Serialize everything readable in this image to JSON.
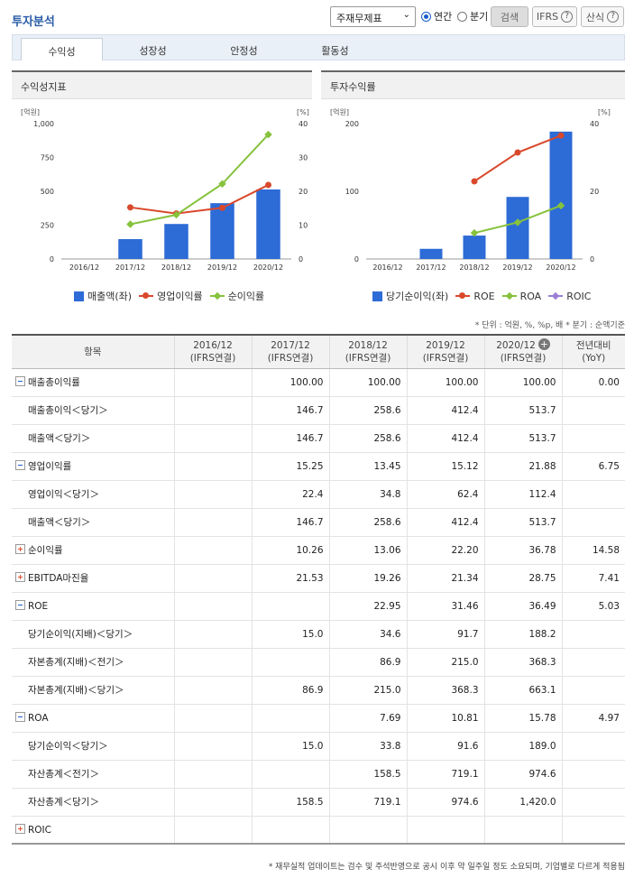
{
  "header": {
    "title": "투자분석",
    "select_value": "주재무제표",
    "radio_annual": "연간",
    "radio_quarter": "분기",
    "search_button": "검색",
    "ifrs_button": "IFRS",
    "formula_button": "산식"
  },
  "tabs": [
    "수익성",
    "성장성",
    "안정성",
    "활동성"
  ],
  "left_panel": {
    "title": "수익성지표",
    "unit_left": "[억원]",
    "unit_right": "[%]",
    "legend": [
      "매출액(좌)",
      "영업이익률",
      "순이익률"
    ]
  },
  "right_panel": {
    "title": "투자수익률",
    "unit_left": "[억원]",
    "unit_right": "[%]",
    "legend": [
      "당기순이익(좌)",
      "ROE",
      "ROA",
      "ROIC"
    ]
  },
  "chart_data": [
    {
      "type": "bar",
      "title": "수익성지표",
      "categories": [
        "2016/12",
        "2017/12",
        "2018/12",
        "2019/12",
        "2020/12"
      ],
      "y_left_ticks": [
        "0",
        "250",
        "500",
        "750",
        "1,000"
      ],
      "y_right_ticks": [
        "0",
        "10",
        "20",
        "30",
        "40"
      ],
      "ylim_left": [
        0,
        1000
      ],
      "ylim_right": [
        0,
        40
      ],
      "series": [
        {
          "name": "매출액(좌)",
          "axis": "left",
          "kind": "bar",
          "color": "#2d6bd6",
          "values": [
            null,
            146.7,
            258.6,
            412.4,
            513.7
          ]
        },
        {
          "name": "영업이익률",
          "axis": "right",
          "kind": "line",
          "color": "#d9482b",
          "values": [
            null,
            15.25,
            13.45,
            15.12,
            21.88
          ]
        },
        {
          "name": "순이익률",
          "axis": "right",
          "kind": "line",
          "color": "#86c23c",
          "values": [
            null,
            10.26,
            13.06,
            22.2,
            36.78
          ]
        }
      ]
    },
    {
      "type": "bar",
      "title": "투자수익률",
      "categories": [
        "2016/12",
        "2017/12",
        "2018/12",
        "2019/12",
        "2020/12"
      ],
      "y_left_ticks": [
        "0",
        "100",
        "200"
      ],
      "y_right_ticks": [
        "0",
        "20",
        "40"
      ],
      "ylim_left": [
        0,
        200
      ],
      "ylim_right": [
        0,
        40
      ],
      "series": [
        {
          "name": "당기순이익(좌)",
          "axis": "left",
          "kind": "bar",
          "color": "#2d6bd6",
          "values": [
            null,
            15.0,
            34.6,
            91.7,
            188.2
          ]
        },
        {
          "name": "ROE",
          "axis": "right",
          "kind": "line",
          "color": "#d9482b",
          "values": [
            null,
            null,
            22.95,
            31.46,
            36.49
          ]
        },
        {
          "name": "ROA",
          "axis": "right",
          "kind": "line",
          "color": "#86c23c",
          "values": [
            null,
            null,
            7.69,
            10.81,
            15.78
          ]
        },
        {
          "name": "ROIC",
          "axis": "right",
          "kind": "line",
          "color": "#9b7fd6",
          "values": [
            null,
            null,
            null,
            null,
            null
          ]
        }
      ]
    }
  ],
  "note": "* 단위 : 억원, %, %p, 배   * 분기 : 순액기준",
  "table": {
    "headers": [
      {
        "line1": "항목",
        "line2": ""
      },
      {
        "line1": "2016/12",
        "line2": "(IFRS연결)"
      },
      {
        "line1": "2017/12",
        "line2": "(IFRS연결)"
      },
      {
        "line1": "2018/12",
        "line2": "(IFRS연결)"
      },
      {
        "line1": "2019/12",
        "line2": "(IFRS연결)"
      },
      {
        "line1": "2020/12",
        "line2": "(IFRS연결)"
      },
      {
        "line1": "전년대비",
        "line2": "(YoY)"
      }
    ],
    "rows": [
      {
        "label": "매출총이익률",
        "level": 0,
        "toggle": "minus",
        "values": [
          "",
          "100.00",
          "100.00",
          "100.00",
          "100.00",
          "0.00"
        ]
      },
      {
        "label": "매출총이익＜당기＞",
        "level": 1,
        "values": [
          "",
          "146.7",
          "258.6",
          "412.4",
          "513.7",
          ""
        ]
      },
      {
        "label": "매출액＜당기＞",
        "level": 1,
        "values": [
          "",
          "146.7",
          "258.6",
          "412.4",
          "513.7",
          ""
        ]
      },
      {
        "label": "영업이익률",
        "level": 0,
        "toggle": "minus",
        "values": [
          "",
          "15.25",
          "13.45",
          "15.12",
          "21.88",
          "6.75"
        ]
      },
      {
        "label": "영업이익＜당기＞",
        "level": 1,
        "values": [
          "",
          "22.4",
          "34.8",
          "62.4",
          "112.4",
          ""
        ]
      },
      {
        "label": "매출액＜당기＞",
        "level": 1,
        "values": [
          "",
          "146.7",
          "258.6",
          "412.4",
          "513.7",
          ""
        ]
      },
      {
        "label": "순이익률",
        "level": 0,
        "toggle": "plus",
        "values": [
          "",
          "10.26",
          "13.06",
          "22.20",
          "36.78",
          "14.58"
        ]
      },
      {
        "label": "EBITDA마진율",
        "level": 0,
        "toggle": "plus",
        "values": [
          "",
          "21.53",
          "19.26",
          "21.34",
          "28.75",
          "7.41"
        ]
      },
      {
        "label": "ROE",
        "level": 0,
        "toggle": "minus",
        "values": [
          "",
          "",
          "22.95",
          "31.46",
          "36.49",
          "5.03"
        ]
      },
      {
        "label": "당기순이익(지배)＜당기＞",
        "level": 1,
        "values": [
          "",
          "15.0",
          "34.6",
          "91.7",
          "188.2",
          ""
        ]
      },
      {
        "label": "자본총계(지배)＜전기＞",
        "level": 1,
        "values": [
          "",
          "",
          "86.9",
          "215.0",
          "368.3",
          ""
        ]
      },
      {
        "label": "자본총계(지배)＜당기＞",
        "level": 1,
        "values": [
          "",
          "86.9",
          "215.0",
          "368.3",
          "663.1",
          ""
        ]
      },
      {
        "label": "ROA",
        "level": 0,
        "toggle": "minus",
        "values": [
          "",
          "",
          "7.69",
          "10.81",
          "15.78",
          "4.97"
        ]
      },
      {
        "label": "당기순이익＜당기＞",
        "level": 1,
        "values": [
          "",
          "15.0",
          "33.8",
          "91.6",
          "189.0",
          ""
        ]
      },
      {
        "label": "자산총계＜전기＞",
        "level": 1,
        "values": [
          "",
          "",
          "158.5",
          "719.1",
          "974.6",
          ""
        ]
      },
      {
        "label": "자산총계＜당기＞",
        "level": 1,
        "values": [
          "",
          "158.5",
          "719.1",
          "974.6",
          "1,420.0",
          ""
        ]
      },
      {
        "label": "ROIC",
        "level": 0,
        "toggle": "plus",
        "values": [
          "",
          "",
          "",
          "",
          "",
          ""
        ]
      }
    ]
  },
  "footer": "* 재무실적 업데이트는 검수 및 주석반영으로 공시 이후 약 일주일 정도 소요되며, 기업별로 다르게 적용됨"
}
